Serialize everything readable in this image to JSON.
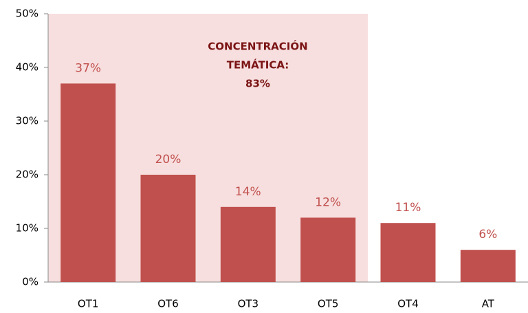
{
  "chart_data": {
    "type": "bar",
    "categories": [
      "OT1",
      "OT6",
      "OT3",
      "OT5",
      "OT4",
      "AT"
    ],
    "values": [
      37,
      20,
      14,
      12,
      11,
      6
    ],
    "value_labels": [
      "37%",
      "20%",
      "14%",
      "12%",
      "11%",
      "6%"
    ],
    "color": "#c0504d",
    "ylim": [
      0,
      50
    ],
    "yticks": [
      {
        "value": 0,
        "label": "0%"
      },
      {
        "value": 10,
        "label": "10%"
      },
      {
        "value": 20,
        "label": "20%"
      },
      {
        "value": 30,
        "label": "30%"
      },
      {
        "value": 40,
        "label": "40%"
      },
      {
        "value": 50,
        "label": "50%"
      }
    ],
    "annotation": [
      "CONCENTRACIÓN",
      "TEMÁTICA:",
      "83%"
    ]
  }
}
